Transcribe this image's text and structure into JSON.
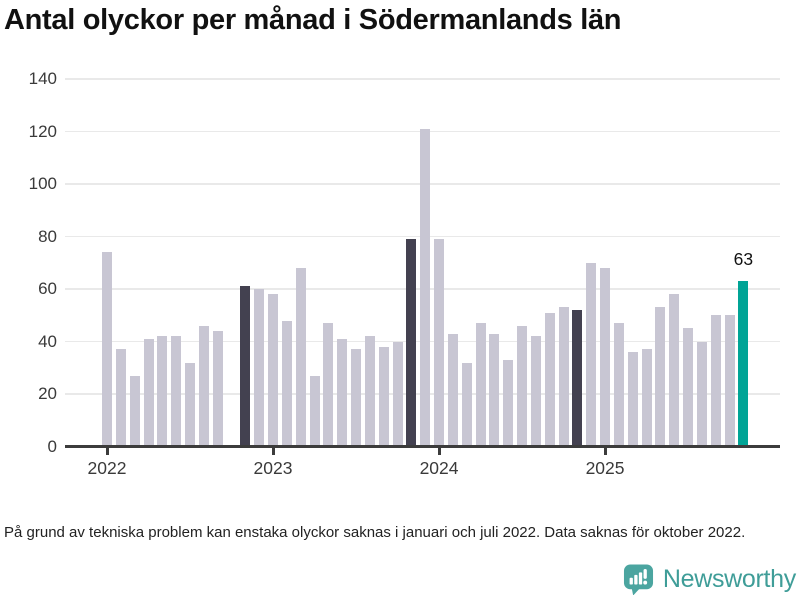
{
  "title": "Antal olyckor per månad i Södermanlands län",
  "footnote": "På grund av tekniska problem kan enstaka olyckor saknas i januari och juli 2022. Data saknas för oktober 2022.",
  "brand": {
    "name": "Newsworthy",
    "logo_icon": "newsworthy-speech-bubble-bar-chart-icon"
  },
  "colors": {
    "bar": "#c8c6d3",
    "bar_dark": "#434150",
    "bar_current": "#00a496",
    "grid": "#e9e9e9",
    "axis": "#3c3c3c",
    "logo_teal": "#4ba5a0",
    "brand_text": "#3f9d98"
  },
  "chart_data": {
    "type": "bar",
    "title": "Antal olyckor per månad i Södermanlands län",
    "xlabel": "",
    "ylabel": "",
    "ylim": [
      0,
      140
    ],
    "yticks": [
      0,
      20,
      40,
      60,
      80,
      100,
      120,
      140
    ],
    "grid": true,
    "x_year_labels": [
      "2022",
      "2023",
      "2024",
      "2025"
    ],
    "annotation": {
      "label": "63",
      "month": "2025-11"
    },
    "missing_months": [
      "2022-10"
    ],
    "months": [
      {
        "month": "2022-01",
        "value": 74,
        "highlight": "none"
      },
      {
        "month": "2022-02",
        "value": 37,
        "highlight": "none"
      },
      {
        "month": "2022-03",
        "value": 27,
        "highlight": "none"
      },
      {
        "month": "2022-04",
        "value": 41,
        "highlight": "none"
      },
      {
        "month": "2022-05",
        "value": 42,
        "highlight": "none"
      },
      {
        "month": "2022-06",
        "value": 42,
        "highlight": "none"
      },
      {
        "month": "2022-07",
        "value": 32,
        "highlight": "none"
      },
      {
        "month": "2022-08",
        "value": 46,
        "highlight": "none"
      },
      {
        "month": "2022-09",
        "value": 44,
        "highlight": "none"
      },
      {
        "month": "2022-10",
        "value": null,
        "highlight": "none"
      },
      {
        "month": "2022-11",
        "value": 61,
        "highlight": "dark"
      },
      {
        "month": "2022-12",
        "value": 60,
        "highlight": "none"
      },
      {
        "month": "2023-01",
        "value": 58,
        "highlight": "none"
      },
      {
        "month": "2023-02",
        "value": 48,
        "highlight": "none"
      },
      {
        "month": "2023-03",
        "value": 68,
        "highlight": "none"
      },
      {
        "month": "2023-04",
        "value": 27,
        "highlight": "none"
      },
      {
        "month": "2023-05",
        "value": 47,
        "highlight": "none"
      },
      {
        "month": "2023-06",
        "value": 41,
        "highlight": "none"
      },
      {
        "month": "2023-07",
        "value": 37,
        "highlight": "none"
      },
      {
        "month": "2023-08",
        "value": 42,
        "highlight": "none"
      },
      {
        "month": "2023-09",
        "value": 38,
        "highlight": "none"
      },
      {
        "month": "2023-10",
        "value": 40,
        "highlight": "none"
      },
      {
        "month": "2023-11",
        "value": 79,
        "highlight": "dark"
      },
      {
        "month": "2023-12",
        "value": 121,
        "highlight": "none"
      },
      {
        "month": "2024-01",
        "value": 79,
        "highlight": "none"
      },
      {
        "month": "2024-02",
        "value": 43,
        "highlight": "none"
      },
      {
        "month": "2024-03",
        "value": 32,
        "highlight": "none"
      },
      {
        "month": "2024-04",
        "value": 47,
        "highlight": "none"
      },
      {
        "month": "2024-05",
        "value": 43,
        "highlight": "none"
      },
      {
        "month": "2024-06",
        "value": 33,
        "highlight": "none"
      },
      {
        "month": "2024-07",
        "value": 46,
        "highlight": "none"
      },
      {
        "month": "2024-08",
        "value": 42,
        "highlight": "none"
      },
      {
        "month": "2024-09",
        "value": 51,
        "highlight": "none"
      },
      {
        "month": "2024-10",
        "value": 53,
        "highlight": "none"
      },
      {
        "month": "2024-11",
        "value": 52,
        "highlight": "dark"
      },
      {
        "month": "2024-12",
        "value": 70,
        "highlight": "none"
      },
      {
        "month": "2025-01",
        "value": 68,
        "highlight": "none"
      },
      {
        "month": "2025-02",
        "value": 47,
        "highlight": "none"
      },
      {
        "month": "2025-03",
        "value": 36,
        "highlight": "none"
      },
      {
        "month": "2025-04",
        "value": 37,
        "highlight": "none"
      },
      {
        "month": "2025-05",
        "value": 53,
        "highlight": "none"
      },
      {
        "month": "2025-06",
        "value": 58,
        "highlight": "none"
      },
      {
        "month": "2025-07",
        "value": 45,
        "highlight": "none"
      },
      {
        "month": "2025-08",
        "value": 40,
        "highlight": "none"
      },
      {
        "month": "2025-09",
        "value": 50,
        "highlight": "none"
      },
      {
        "month": "2025-10",
        "value": 50,
        "highlight": "none"
      },
      {
        "month": "2025-11",
        "value": 63,
        "highlight": "current"
      }
    ]
  }
}
